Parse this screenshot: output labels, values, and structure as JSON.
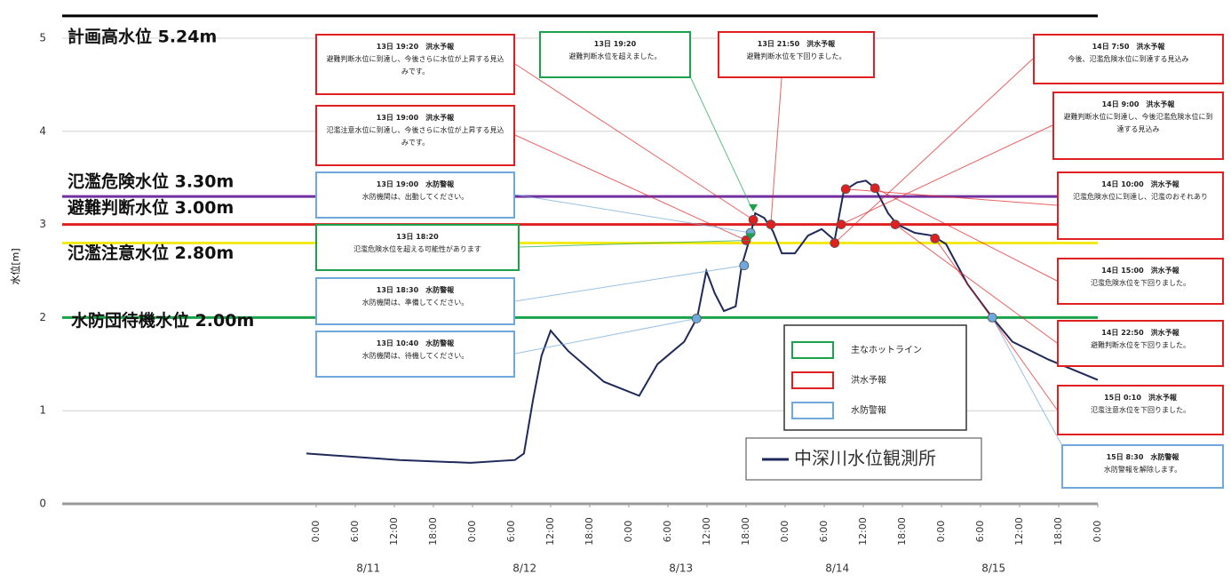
{
  "chart_data": {
    "type": "line",
    "ylabel": "水位[m]",
    "ylim": [
      0,
      5.4
    ],
    "yticks": [
      0,
      1,
      2,
      3,
      4,
      5
    ],
    "xlim": [
      -1.5,
      120
    ],
    "xticks": [
      {
        "value": 0,
        "label": "0:00"
      },
      {
        "value": 6,
        "label": "6:00"
      },
      {
        "value": 12,
        "label": "12:00"
      },
      {
        "value": 18,
        "label": "18:00"
      },
      {
        "value": 24,
        "label": "0:00"
      },
      {
        "value": 30,
        "label": "6:00"
      },
      {
        "value": 36,
        "label": "12:00"
      },
      {
        "value": 42,
        "label": "18:00"
      },
      {
        "value": 48,
        "label": "0:00"
      },
      {
        "value": 54,
        "label": "6:00"
      },
      {
        "value": 60,
        "label": "12:00"
      },
      {
        "value": 66,
        "label": "18:00"
      },
      {
        "value": 72,
        "label": "0:00"
      },
      {
        "value": 78,
        "label": "6:00"
      },
      {
        "value": 84,
        "label": "12:00"
      },
      {
        "value": 90,
        "label": "18:00"
      },
      {
        "value": 96,
        "label": "0:00"
      },
      {
        "value": 102,
        "label": "6:00"
      },
      {
        "value": 108,
        "label": "12:00"
      },
      {
        "value": 114,
        "label": "18:00"
      },
      {
        "value": 120,
        "label": "0:00"
      }
    ],
    "dates": [
      "8/11",
      "8/12",
      "8/13",
      "8/14",
      "8/15"
    ],
    "grid": true,
    "thresholds": [
      {
        "label": "計画高水位 5.24m",
        "value": 5.24,
        "color": "#000000"
      },
      {
        "label": "氾濫危険水位 3.30m",
        "value": 3.3,
        "color": "#7030a0"
      },
      {
        "label": "避難判断水位 3.00m",
        "value": 3.0,
        "color": "#e02020"
      },
      {
        "label": "氾濫注意水位 2.80m",
        "value": 2.8,
        "color": "#f2ea1a"
      },
      {
        "label": "水防団待機水位 2.00m",
        "value": 2.0,
        "color": "#1aa34a"
      }
    ],
    "series": [
      {
        "name": "中深川水位観測所",
        "color": "#1f2a5a",
        "x": [
          -1.5,
          12.8,
          23.7,
          30.5,
          31.9,
          33.3,
          34.6,
          36,
          38.7,
          44.2,
          49.6,
          52.4,
          56.5,
          58.5,
          59.9,
          61.2,
          62.6,
          64.4,
          65.3,
          66.7,
          67.4,
          68.8,
          70.1,
          71.5,
          73.5,
          75.5,
          77.6,
          79.6,
          81,
          83,
          84.4,
          85.8,
          87.8,
          89.2,
          91.9,
          94.6,
          96.7,
          100,
          103.8,
          106.9,
          112.4,
          120
        ],
        "values": [
          0.54,
          0.47,
          0.44,
          0.47,
          0.54,
          1.12,
          1.59,
          1.86,
          1.64,
          1.31,
          1.16,
          1.5,
          1.74,
          2.0,
          2.5,
          2.26,
          2.07,
          2.12,
          2.55,
          2.88,
          3.12,
          3.07,
          2.93,
          2.69,
          2.69,
          2.88,
          2.95,
          2.83,
          3.36,
          3.45,
          3.47,
          3.39,
          3.12,
          3.0,
          2.91,
          2.88,
          2.79,
          2.36,
          2.0,
          1.74,
          1.55,
          1.33
        ]
      }
    ],
    "legend": [
      {
        "name": "主なホットライン",
        "color": "#1aa34a"
      },
      {
        "name": "洪水予報",
        "color": "#e02020"
      },
      {
        "name": "水防警報",
        "color": "#6fa8dc"
      }
    ],
    "annotations": [
      {
        "heading": "13日 19:20　洪水予報",
        "text": "避難判断水位に到達し、今後さらに水位が上昇する見込みです。",
        "color": "#e02020",
        "x": 67.1,
        "y": 3.05
      },
      {
        "heading": "13日 19:00　洪水予報",
        "text": "氾濫注意水位に到達し、今後さらに水位が上昇する見込みです。",
        "color": "#e02020",
        "x": 66.0,
        "y": 2.83
      },
      {
        "heading": "13日 19:00　水防警報",
        "text": "水防機関は、出動してください。",
        "color": "#6fa8dc",
        "x": 66.7,
        "y": 2.91
      },
      {
        "heading": "13日 18:20",
        "text": "氾濫危険水位を超える可能性があります",
        "color": "#1aa34a",
        "x": 66.7,
        "y": 2.83
      },
      {
        "heading": "13日 18:30　水防警報",
        "text": "水防機関は、準備してください。",
        "color": "#6fa8dc",
        "x": 65.7,
        "y": 2.56
      },
      {
        "heading": "13日 10:40　水防警報",
        "text": "水防機関は、待機してください。",
        "color": "#6fa8dc",
        "x": 58.4,
        "y": 1.99
      },
      {
        "heading": "13日 19:20",
        "text": "避難判断水位を超えました。",
        "color": "#1aa34a",
        "x": 67.1,
        "y": 3.14
      },
      {
        "heading": "13日 21:50　洪水予報",
        "text": "避難判断水位を下回りました。",
        "color": "#e02020",
        "x": 69.8,
        "y": 3.0
      },
      {
        "heading": "14日 7:50　洪水予報",
        "text": "今後、氾濫危険水位に到達する見込み",
        "color": "#e02020",
        "x": 79.6,
        "y": 2.8
      },
      {
        "heading": "14日 9:00　洪水予報",
        "text": "避難判断水位に到達し、今後氾濫危険水位に到達する見込み",
        "color": "#e02020",
        "x": 80.6,
        "y": 3.0
      },
      {
        "heading": "14日 10:00　洪水予報",
        "text": "氾濫危険水位に到達し、氾濫のおそれあり",
        "color": "#e02020",
        "x": 81.3,
        "y": 3.38
      },
      {
        "heading": "14日 15:00　洪水予報",
        "text": "氾濫危険水位を下回りました。",
        "color": "#e02020",
        "x": 85.8,
        "y": 3.39
      },
      {
        "heading": "14日 22:50　洪水予報",
        "text": "避難判断水位を下回りました。",
        "color": "#e02020",
        "x": 88.9,
        "y": 3.0
      },
      {
        "heading": "15日 0:10　洪水予報",
        "text": "氾濫注意水位を下回りました。",
        "color": "#e02020",
        "x": 95.0,
        "y": 2.85
      },
      {
        "heading": "15日 8:30　水防警報",
        "text": "水防警報を解除します。",
        "color": "#6fa8dc",
        "x": 103.8,
        "y": 2.0
      }
    ]
  }
}
